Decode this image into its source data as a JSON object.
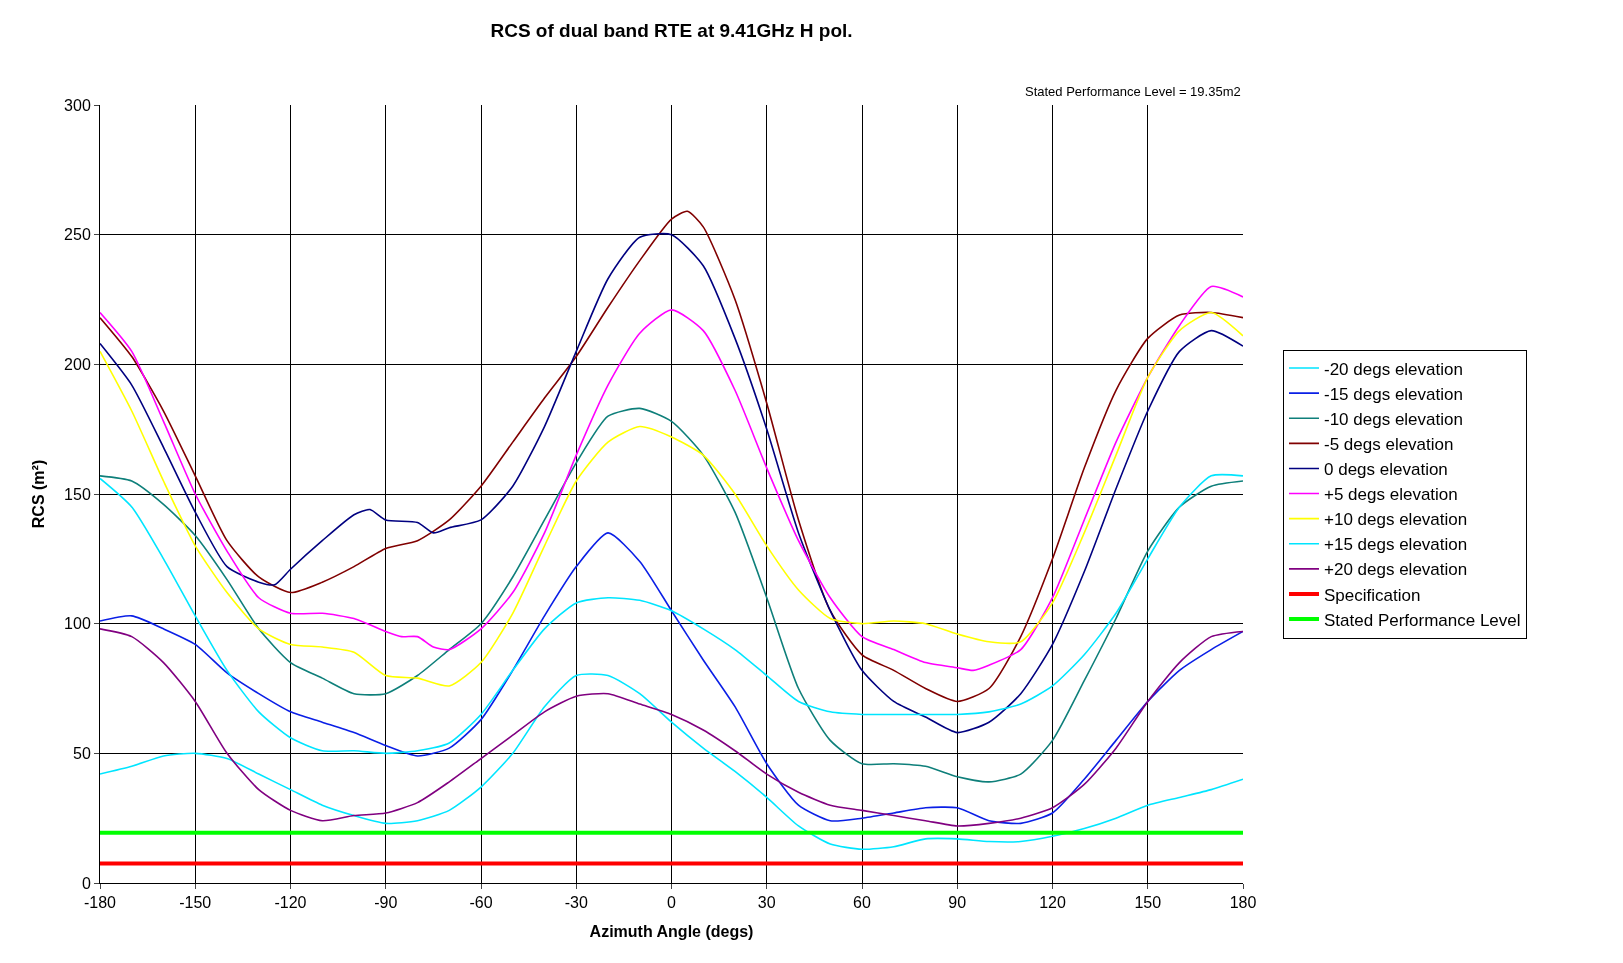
{
  "chart_data": {
    "type": "line",
    "title": "RCS of dual band RTE at 9.41GHz H pol.",
    "xlabel": "Azimuth Angle (degs)",
    "ylabel": "RCS (m²)",
    "annotations": [
      "Stated Performance Level = 19.35m2"
    ],
    "x": [
      -180,
      -170,
      -160,
      -150,
      -140,
      -130,
      -120,
      -110,
      -100,
      -90,
      -80,
      -70,
      -60,
      -50,
      -40,
      -30,
      -20,
      -10,
      0,
      10,
      20,
      30,
      40,
      50,
      60,
      70,
      80,
      90,
      100,
      110,
      120,
      130,
      140,
      150,
      160,
      170,
      180
    ],
    "xlim": [
      -180,
      180
    ],
    "xticks": [
      -180,
      -150,
      -120,
      -90,
      -60,
      -30,
      0,
      30,
      60,
      90,
      120,
      150,
      180
    ],
    "ylim": [
      0,
      300
    ],
    "yticks": [
      0,
      50,
      100,
      150,
      200,
      250,
      300
    ],
    "grid": true,
    "legend": "right",
    "marker": "none",
    "line_style": "solid",
    "series": [
      {
        "name": "-20 degs elevation",
        "color": "#00e5ff",
        "values": [
          42,
          45,
          49,
          50,
          48,
          42,
          36,
          30,
          26,
          23,
          24,
          28,
          37,
          50,
          68,
          80,
          80,
          73,
          62,
          52,
          43,
          33,
          22,
          15,
          13,
          14,
          17,
          17,
          16,
          16,
          18,
          21,
          25,
          30,
          33,
          36,
          40
        ]
      },
      {
        "name": "-15 degs elevation",
        "color": "#0a1fe6",
        "values": [
          101,
          103,
          98,
          92,
          81,
          73,
          66,
          62,
          58,
          53,
          49,
          52,
          63,
          82,
          103,
          122,
          135,
          124,
          105,
          86,
          68,
          46,
          30,
          24,
          25,
          27,
          29,
          29,
          24,
          23,
          27,
          40,
          55,
          70,
          82,
          90,
          97
        ]
      },
      {
        "name": "-10 degs elevation",
        "color": "#0e7f7a",
        "values": [
          157,
          155,
          146,
          134,
          117,
          98,
          85,
          79,
          73,
          73,
          80,
          90,
          100,
          118,
          140,
          162,
          180,
          183,
          178,
          165,
          143,
          110,
          75,
          55,
          46,
          46,
          45,
          41,
          39,
          42,
          55,
          78,
          102,
          128,
          145,
          153,
          155
        ]
      },
      {
        "name": "-5 degs elevation",
        "color": "#800000",
        "x": [
          -180,
          -170,
          -160,
          -150,
          -140,
          -130,
          -120,
          -110,
          -100,
          -90,
          -80,
          -70,
          -60,
          -50,
          -40,
          -30,
          -20,
          -10,
          0,
          5,
          10,
          20,
          30,
          40,
          50,
          60,
          70,
          80,
          90,
          100,
          110,
          120,
          130,
          140,
          150,
          160,
          170,
          180
        ],
        "values": [
          218,
          203,
          182,
          157,
          132,
          118,
          112,
          116,
          122,
          129,
          132,
          140,
          153,
          170,
          187,
          203,
          222,
          240,
          256,
          259,
          253,
          225,
          185,
          140,
          105,
          88,
          82,
          75,
          70,
          75,
          95,
          125,
          160,
          190,
          210,
          219,
          220,
          218
        ]
      },
      {
        "name": "0 degs elevation",
        "color": "#000080",
        "x": [
          -180,
          -170,
          -160,
          -150,
          -140,
          -130,
          -125,
          -120,
          -110,
          -100,
          -95,
          -90,
          -80,
          -75,
          -70,
          -60,
          -50,
          -40,
          -30,
          -20,
          -10,
          0,
          10,
          20,
          30,
          40,
          50,
          60,
          70,
          80,
          90,
          100,
          110,
          120,
          130,
          140,
          150,
          160,
          170,
          180
        ],
        "values": [
          208,
          192,
          168,
          143,
          122,
          116,
          115,
          121,
          132,
          142,
          144,
          140,
          139,
          135,
          137,
          140,
          153,
          176,
          205,
          233,
          249,
          250,
          238,
          210,
          175,
          135,
          105,
          82,
          70,
          64,
          58,
          62,
          73,
          92,
          120,
          152,
          182,
          205,
          213,
          207
        ]
      },
      {
        "name": "+5 degs elevation",
        "color": "#ff00ff",
        "x": [
          -180,
          -170,
          -160,
          -150,
          -140,
          -130,
          -120,
          -110,
          -100,
          -90,
          -85,
          -80,
          -75,
          -70,
          -60,
          -50,
          -40,
          -30,
          -20,
          -10,
          0,
          10,
          20,
          30,
          40,
          50,
          60,
          70,
          80,
          90,
          95,
          100,
          110,
          120,
          130,
          140,
          150,
          160,
          170,
          180
        ],
        "values": [
          220,
          205,
          178,
          150,
          128,
          110,
          104,
          104,
          102,
          97,
          95,
          95,
          91,
          90,
          98,
          112,
          135,
          165,
          192,
          212,
          221,
          213,
          190,
          160,
          132,
          110,
          95,
          90,
          85,
          83,
          82,
          84,
          90,
          110,
          140,
          170,
          195,
          215,
          230,
          226
        ]
      },
      {
        "name": "+10 degs elevation",
        "color": "#ffff00",
        "values": [
          205,
          182,
          155,
          130,
          112,
          98,
          92,
          91,
          89,
          80,
          79,
          76,
          85,
          104,
          130,
          155,
          170,
          176,
          172,
          165,
          150,
          130,
          113,
          102,
          100,
          101,
          100,
          96,
          93,
          93,
          108,
          135,
          165,
          195,
          213,
          220,
          211
        ]
      },
      {
        "name": "+15 degs elevation",
        "color": "#00e5ff",
        "values": [
          156,
          145,
          125,
          103,
          82,
          66,
          56,
          51,
          51,
          50,
          51,
          54,
          65,
          82,
          98,
          108,
          110,
          109,
          105,
          98,
          90,
          80,
          70,
          66,
          65,
          65,
          65,
          65,
          66,
          69,
          76,
          88,
          104,
          125,
          145,
          157,
          157
        ]
      },
      {
        "name": "+20 degs elevation",
        "color": "#800080",
        "values": [
          98,
          95,
          85,
          70,
          50,
          36,
          28,
          24,
          26,
          27,
          31,
          39,
          48,
          57,
          66,
          72,
          73,
          69,
          65,
          59,
          51,
          42,
          35,
          30,
          28,
          26,
          24,
          22,
          23,
          25,
          29,
          38,
          52,
          70,
          85,
          95,
          97
        ]
      }
    ],
    "ref_lines": [
      {
        "axis": "y",
        "value": 7.5,
        "label": "Specification",
        "color": "#ff0000"
      },
      {
        "axis": "y",
        "value": 19.35,
        "label": "Stated Performance Level",
        "color": "#00ff00"
      }
    ]
  }
}
